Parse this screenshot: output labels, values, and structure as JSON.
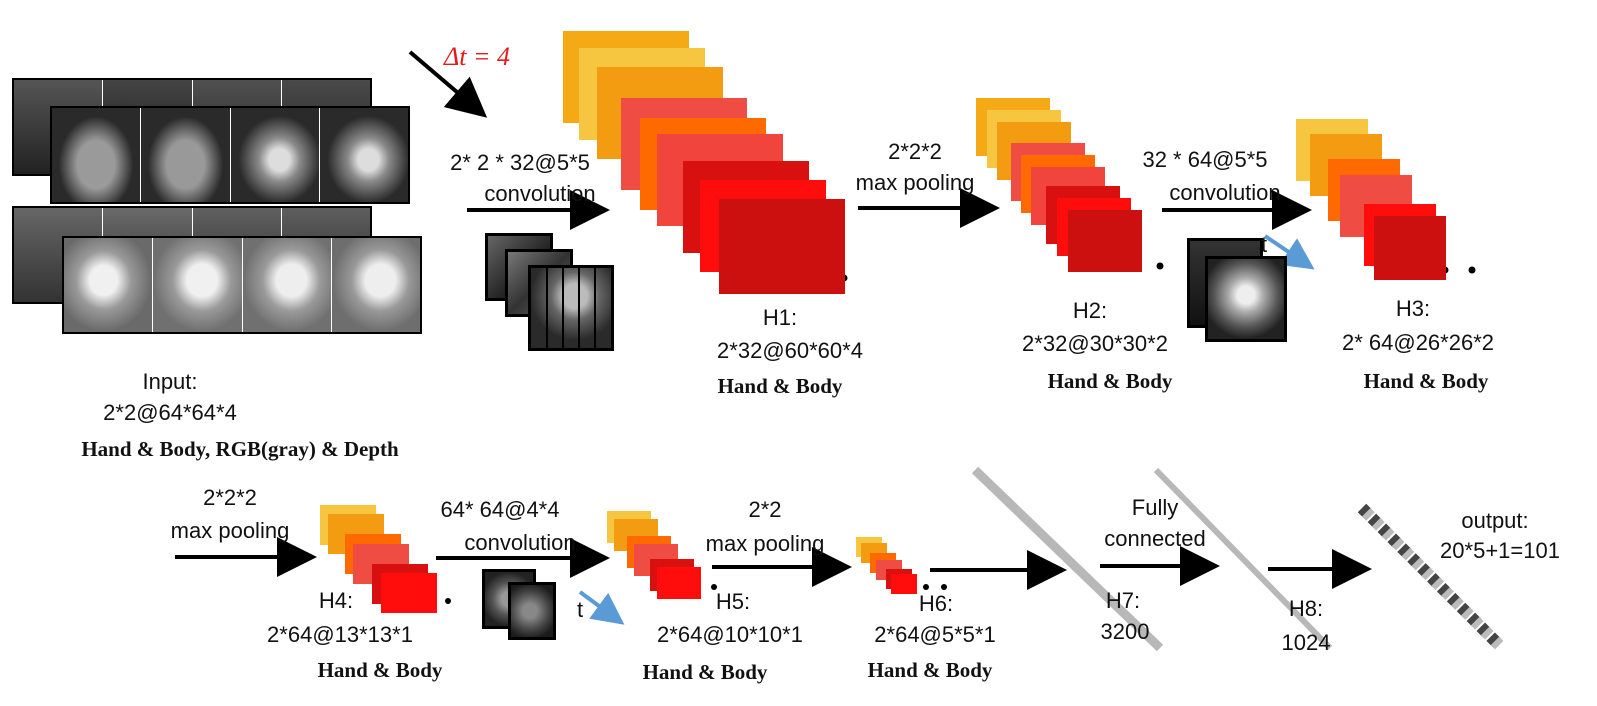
{
  "delta_label": "Δt = 4",
  "delta_color": "#e31b1b",
  "input": {
    "title": "Input:",
    "shape": "2*2@64*64*4",
    "desc": "Hand & Body, RGB(gray) & Depth"
  },
  "ops": {
    "conv1": {
      "shape": "2* 2 * 32@5*5",
      "name": "convolution"
    },
    "pool1": {
      "shape": "2*2*2",
      "name": "max pooling"
    },
    "conv2": {
      "shape": "32 * 64@5*5",
      "name": "convolution"
    },
    "pool2": {
      "shape": "2*2*2",
      "name": "max pooling"
    },
    "conv3": {
      "shape": "64* 64@4*4",
      "name": "convolution"
    },
    "pool3": {
      "shape": "2*2",
      "name": "max pooling"
    },
    "fc": {
      "line1": "Fully",
      "line2": "connected"
    }
  },
  "layers": {
    "h1": {
      "name": "H1:",
      "shape": "2*32@60*60*4",
      "desc": "Hand & Body"
    },
    "h2": {
      "name": "H2:",
      "shape": "2*32@30*30*2",
      "desc": "Hand & Body"
    },
    "h3": {
      "name": "H3:",
      "shape": "2* 64@26*26*2",
      "desc": "Hand & Body"
    },
    "h4": {
      "name": "H4:",
      "shape": "2*64@13*13*1",
      "desc": "Hand & Body"
    },
    "h5": {
      "name": "H5:",
      "shape": "2*64@10*10*1",
      "desc": "Hand & Body"
    },
    "h6": {
      "name": "H6:",
      "shape": "2*64@5*5*1",
      "desc": "Hand & Body"
    },
    "h7": {
      "name": "H7:",
      "shape": "3200"
    },
    "h8": {
      "name": "H8:",
      "shape": "1024"
    }
  },
  "output": {
    "title": "output:",
    "shape": "20*5+1=101"
  },
  "time_label": "t",
  "colors": {
    "map_palette": [
      "#f5a915",
      "#f7c640",
      "#f39c12",
      "#ef4d43",
      "#ff6a00",
      "#f0443c",
      "#d81010",
      "#ff0d0d",
      "#cc0f0f"
    ],
    "time_arrow": "#5b9bd5",
    "divider": "#b8b8b8"
  }
}
